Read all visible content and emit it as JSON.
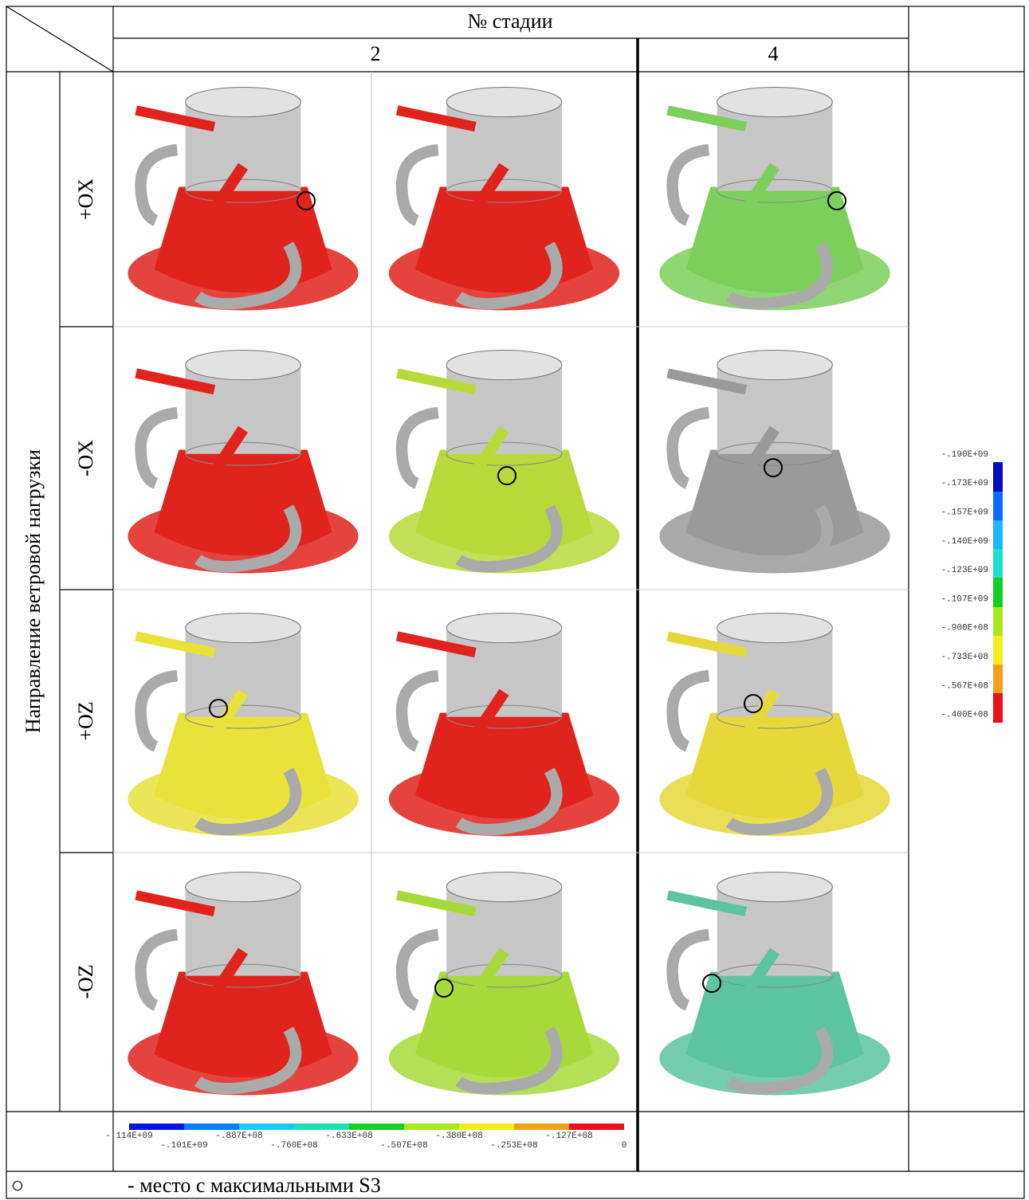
{
  "header": {
    "group": "№ стадии",
    "stages": [
      "2",
      "4"
    ]
  },
  "side_label": "Направление ветровой нагрузки",
  "rows": [
    "+OX",
    "-OX",
    "+OZ",
    "-OZ"
  ],
  "legend_bottom": {
    "labels": [
      "-.114E+09",
      "-.101E+09",
      "-.887E+08",
      "-.760E+08",
      "-.633E+08",
      "-.507E+08",
      "-.380E+08",
      "-.253E+08",
      "-.127E+08",
      "0"
    ]
  },
  "legend_right": {
    "labels": [
      "-.190E+09",
      "-.173E+09",
      "-.157E+09",
      "-.140E+09",
      "-.123E+09",
      "-.107E+09",
      "-.900E+08",
      "-.733E+08",
      "-.567E+08",
      "-.400E+08"
    ]
  },
  "note": {
    "symbol": "○",
    "text": "- место с максимальными S3"
  }
}
